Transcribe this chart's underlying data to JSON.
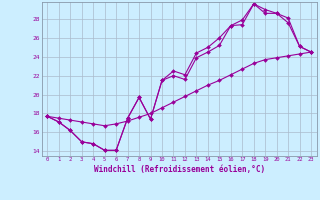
{
  "xlabel": "Windchill (Refroidissement éolien,°C)",
  "bg_color": "#cceeff",
  "line_color": "#990099",
  "grid_color": "#aabbcc",
  "xlim": [
    -0.5,
    23.5
  ],
  "ylim": [
    13.5,
    29.8
  ],
  "yticks": [
    14,
    16,
    18,
    20,
    22,
    24,
    26,
    28
  ],
  "xticks": [
    0,
    1,
    2,
    3,
    4,
    5,
    6,
    7,
    8,
    9,
    10,
    11,
    12,
    13,
    14,
    15,
    16,
    17,
    18,
    19,
    20,
    21,
    22,
    23
  ],
  "line1_x": [
    0,
    1,
    2,
    3,
    4,
    5,
    6,
    7,
    8,
    9,
    10,
    11,
    12,
    13,
    14,
    15,
    16,
    17,
    18,
    19,
    20,
    21,
    22,
    23
  ],
  "line1_y": [
    17.7,
    17.1,
    16.2,
    15.0,
    14.8,
    14.1,
    14.1,
    17.5,
    19.7,
    17.4,
    21.5,
    22.0,
    21.6,
    23.9,
    24.5,
    25.2,
    27.3,
    27.4,
    29.6,
    29.0,
    28.6,
    27.6,
    25.1,
    24.5
  ],
  "line2_x": [
    0,
    1,
    2,
    3,
    4,
    5,
    6,
    7,
    8,
    9,
    10,
    11,
    12,
    13,
    14,
    15,
    16,
    17,
    18,
    19,
    20,
    21,
    22,
    23
  ],
  "line2_y": [
    17.7,
    17.1,
    16.2,
    15.0,
    14.8,
    14.1,
    14.1,
    17.5,
    19.7,
    17.4,
    21.5,
    22.5,
    22.1,
    24.4,
    25.0,
    26.0,
    27.3,
    27.9,
    29.6,
    28.6,
    28.6,
    28.1,
    25.1,
    24.5
  ],
  "line3_x": [
    0,
    1,
    2,
    3,
    4,
    5,
    6,
    7,
    8,
    9,
    10,
    11,
    12,
    13,
    14,
    15,
    16,
    17,
    18,
    19,
    20,
    21,
    22,
    23
  ],
  "line3_y": [
    17.7,
    17.5,
    17.3,
    17.1,
    16.9,
    16.7,
    16.9,
    17.2,
    17.6,
    18.0,
    18.6,
    19.2,
    19.8,
    20.4,
    21.0,
    21.5,
    22.1,
    22.7,
    23.3,
    23.7,
    23.9,
    24.1,
    24.3,
    24.5
  ]
}
